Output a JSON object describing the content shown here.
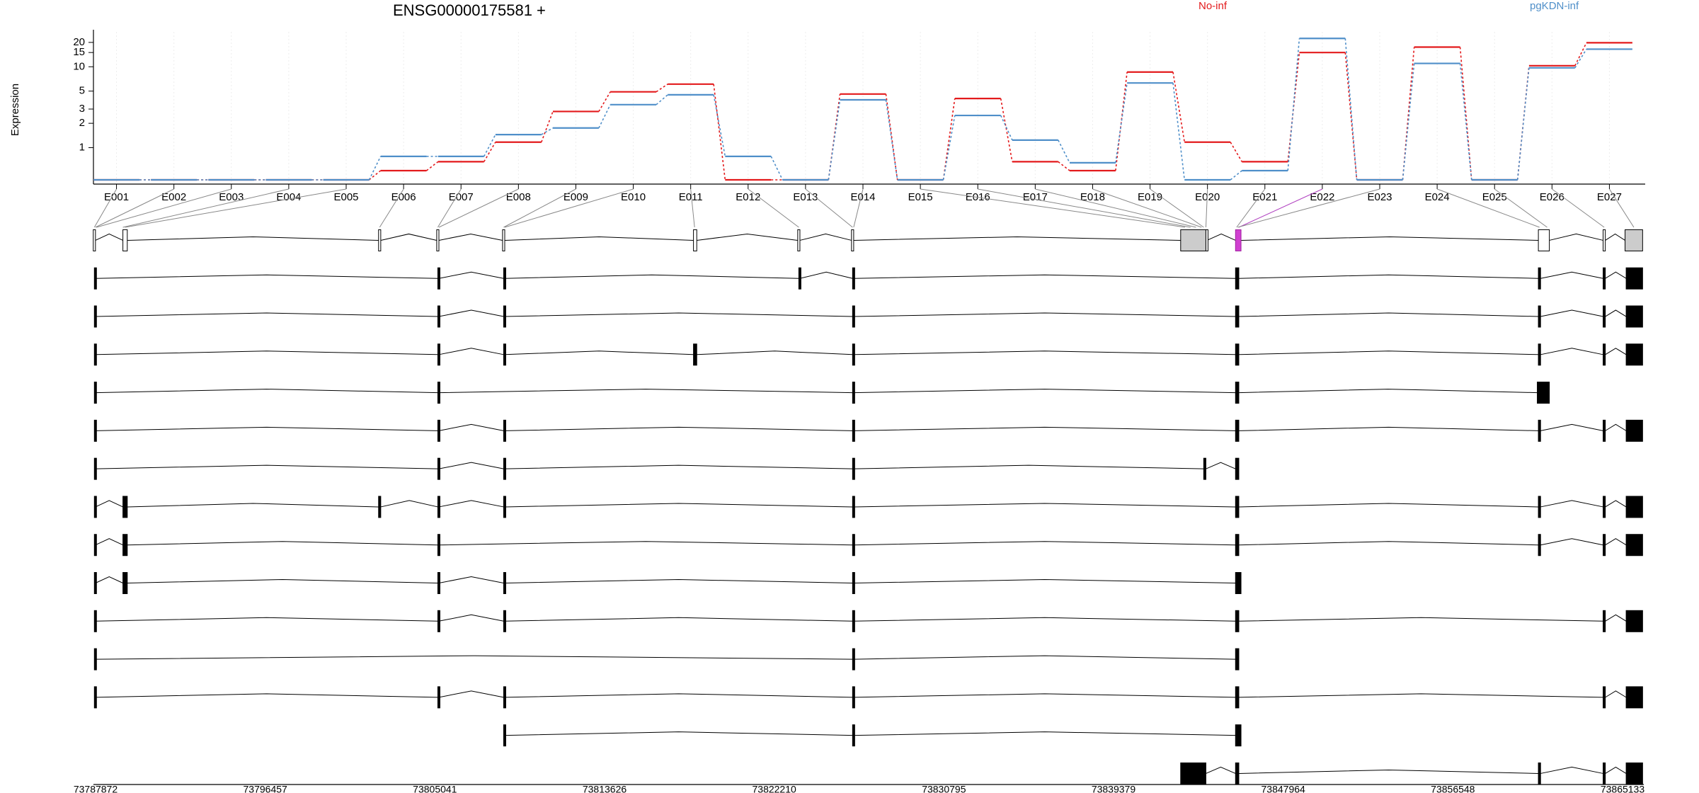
{
  "chart_data": {
    "type": "step-line",
    "title": "ENSG00000175581 +",
    "y_label": "Expression",
    "log_scale": true,
    "grid": true,
    "legend": "top",
    "categories": [
      "E001",
      "E002",
      "E003",
      "E004",
      "E005",
      "E006",
      "E007",
      "E008",
      "E009",
      "E010",
      "E011",
      "E012",
      "E013",
      "E014",
      "E015",
      "E016",
      "E017",
      "E018",
      "E019",
      "E020",
      "E021",
      "E022",
      "E023",
      "E024",
      "E025",
      "E026",
      "E027"
    ],
    "series": [
      {
        "name": "No-inf",
        "color": "#e31a1c",
        "values": [
          0.4,
          0.4,
          0.4,
          0.4,
          0.4,
          0.52,
          0.67,
          1.17,
          2.8,
          4.9,
          6.1,
          0.4,
          0.4,
          4.6,
          0.4,
          4.05,
          0.67,
          0.52,
          8.6,
          1.17,
          0.67,
          15,
          0.4,
          17.5,
          0.4,
          10.3,
          19.8
        ]
      },
      {
        "name": "pgKDN-inf",
        "color": "#4f8fc9",
        "values": [
          0.4,
          0.4,
          0.4,
          0.4,
          0.4,
          0.78,
          0.78,
          1.45,
          1.75,
          3.4,
          4.5,
          0.78,
          0.4,
          3.9,
          0.4,
          2.5,
          1.24,
          0.65,
          6.3,
          0.4,
          0.52,
          22.4,
          0.4,
          11,
          0.4,
          9.7,
          16.5
        ]
      }
    ],
    "ylim": [
      0.4,
      27
    ],
    "yticks": [
      1,
      2,
      3,
      5,
      10,
      15,
      20
    ],
    "genomic_axis": {
      "xlim": [
        73787872,
        73865133
      ],
      "xticks": [
        73787872,
        73796457,
        73805041,
        73813626,
        73822210,
        73830795,
        73839379,
        73847964,
        73856548,
        73865133
      ]
    }
  }
}
